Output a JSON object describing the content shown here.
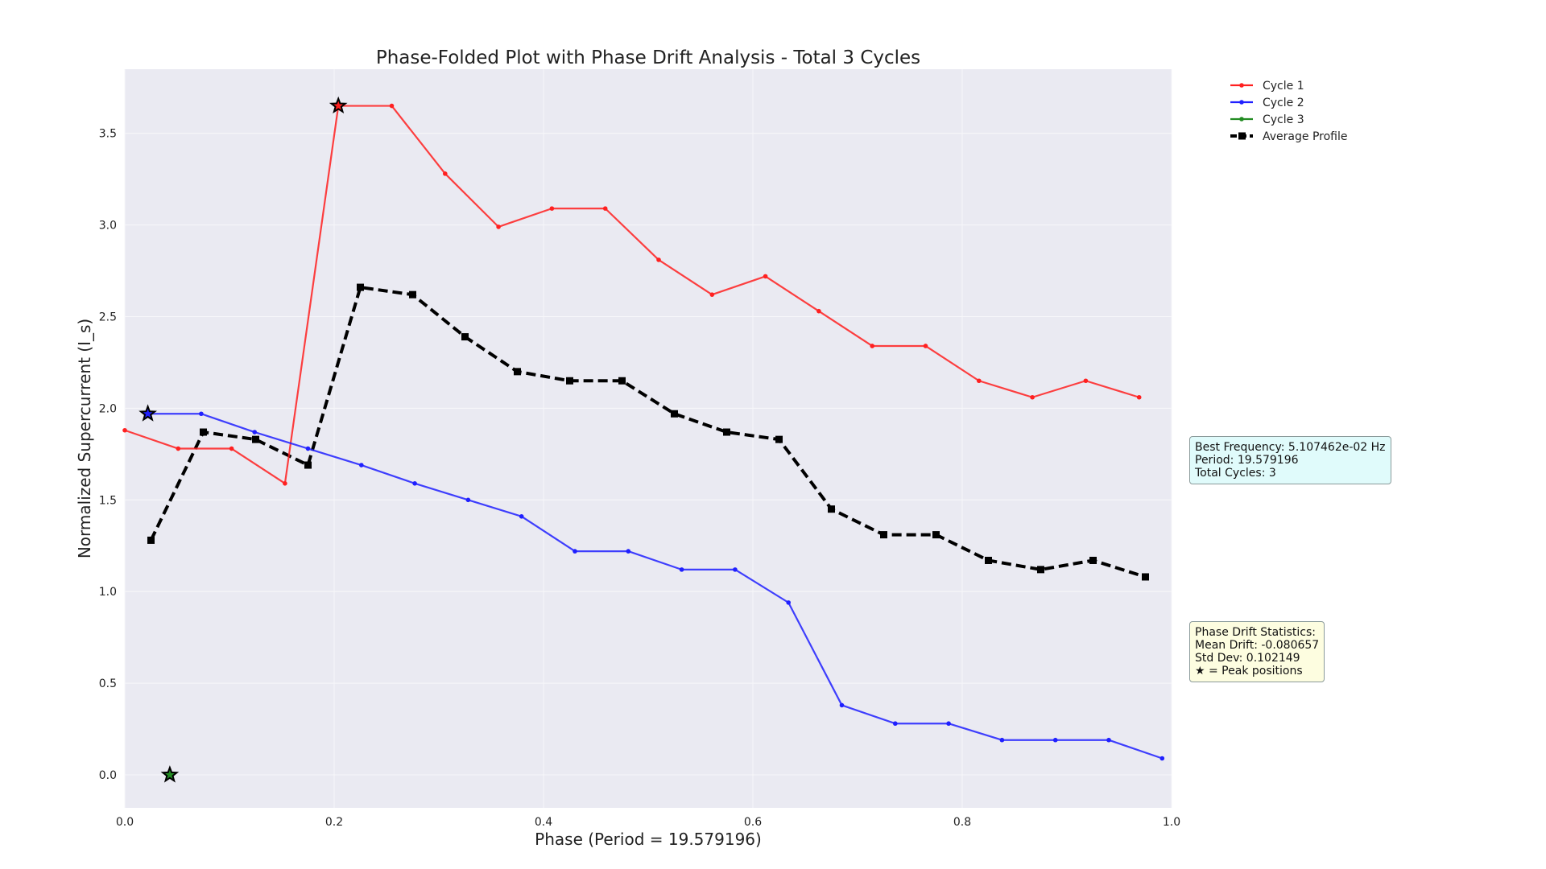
{
  "chart_data": {
    "type": "line",
    "title": "Phase-Folded Plot with Phase Drift Analysis - Total 3 Cycles",
    "xlabel": "Phase (Period = 19.579196)",
    "ylabel": "Normalized Supercurrent (I_s)",
    "xlim": [
      0.0,
      1.0
    ],
    "ylim": [
      -0.18,
      3.85
    ],
    "xticks": [
      0.0,
      0.2,
      0.4,
      0.6,
      0.8,
      1.0
    ],
    "xtick_labels": [
      "0.0",
      "0.2",
      "0.4",
      "0.6",
      "0.8",
      "1.0"
    ],
    "yticks": [
      0.0,
      0.5,
      1.0,
      1.5,
      2.0,
      2.5,
      3.0,
      3.5
    ],
    "ytick_labels": [
      "0.0",
      "0.5",
      "1.0",
      "1.5",
      "2.0",
      "2.5",
      "3.0",
      "3.5"
    ],
    "grid": true,
    "legend_position": "outside top-right",
    "series": [
      {
        "name": "Cycle 1",
        "color": "#ff2020",
        "style": "solid",
        "marker": "dot",
        "x": [
          0.0,
          0.051,
          0.102,
          0.153,
          0.204,
          0.255,
          0.306,
          0.357,
          0.408,
          0.459,
          0.51,
          0.561,
          0.612,
          0.663,
          0.714,
          0.765,
          0.816,
          0.867,
          0.918,
          0.969
        ],
        "y": [
          1.88,
          1.78,
          1.78,
          1.59,
          3.65,
          3.65,
          3.28,
          2.99,
          3.09,
          3.09,
          2.81,
          2.62,
          2.72,
          2.53,
          2.34,
          2.34,
          2.15,
          2.06,
          2.15,
          2.06
        ]
      },
      {
        "name": "Cycle 2",
        "color": "#2020ff",
        "style": "solid",
        "marker": "dot",
        "x": [
          0.022,
          0.073,
          0.124,
          0.175,
          0.226,
          0.277,
          0.328,
          0.379,
          0.43,
          0.481,
          0.532,
          0.583,
          0.634,
          0.685,
          0.736,
          0.787,
          0.838,
          0.889,
          0.94,
          0.991
        ],
        "y": [
          1.97,
          1.97,
          1.87,
          1.78,
          1.69,
          1.59,
          1.5,
          1.41,
          1.22,
          1.22,
          1.12,
          1.12,
          0.94,
          0.38,
          0.28,
          0.28,
          0.19,
          0.19,
          0.19,
          0.09
        ]
      },
      {
        "name": "Cycle 3",
        "color": "#228b22",
        "style": "solid",
        "marker": "dot",
        "x": [],
        "y": []
      },
      {
        "name": "Average Profile",
        "color": "#000000",
        "style": "dashed",
        "marker": "square",
        "x": [
          0.025,
          0.075,
          0.125,
          0.175,
          0.225,
          0.275,
          0.325,
          0.375,
          0.425,
          0.475,
          0.525,
          0.575,
          0.625,
          0.675,
          0.725,
          0.775,
          0.825,
          0.875,
          0.925,
          0.975
        ],
        "y": [
          1.28,
          1.87,
          1.83,
          1.69,
          2.66,
          2.62,
          2.39,
          2.2,
          2.15,
          2.15,
          1.97,
          1.87,
          1.83,
          1.45,
          1.31,
          1.31,
          1.17,
          1.12,
          1.17,
          1.08
        ]
      }
    ],
    "peaks": [
      {
        "series": "Cycle 1",
        "x": 0.204,
        "y": 3.65,
        "color": "#ff2020"
      },
      {
        "series": "Cycle 2",
        "x": 0.022,
        "y": 1.97,
        "color": "#2020ff"
      },
      {
        "series": "Cycle 3",
        "x": 0.043,
        "y": 0.0,
        "color": "#228b22"
      }
    ]
  },
  "info_box": {
    "frequency": "Best Frequency: 5.107462e-02 Hz",
    "period": "Period: 19.579196",
    "cycles": "Total Cycles: 3",
    "background": "#e0fbfb"
  },
  "drift_box": {
    "heading": "Phase Drift Statistics:",
    "mean": "Mean Drift: -0.080657",
    "std": "Std Dev: 0.102149",
    "note": "★ = Peak positions",
    "background": "#fdfde0"
  },
  "colors": {
    "plot_background": "#eaeaf2",
    "grid": "#f7f7fa"
  }
}
